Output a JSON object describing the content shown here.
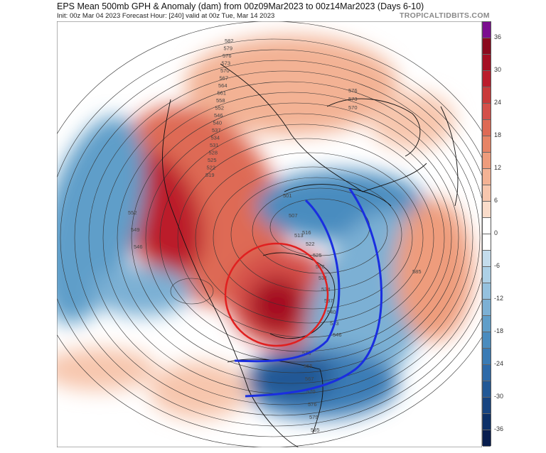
{
  "header": {
    "title": "EPS Mean 500mb GPH & Anomaly (dam) from 00z09Mar2023 to 00z14Mar2023 (Days 6-10)",
    "subtitle": "Init: 00z Mar 04 2023   Forecast Hour: [240]   valid at 00z Tue, Mar 14 2023",
    "brand": "TROPICALTIDBITS.COM"
  },
  "colorbar": {
    "max": 39,
    "min": -39,
    "step": 3,
    "labels": [
      "36",
      "30",
      "24",
      "18",
      "12",
      "6",
      "0",
      "-6",
      "-12",
      "-18",
      "-24",
      "-30",
      "-36"
    ],
    "colors": [
      "#7b0d8f",
      "#8b0a1e",
      "#a50f23",
      "#bb1c2c",
      "#c93a3a",
      "#d4504a",
      "#de6a55",
      "#e78466",
      "#ee9c7c",
      "#f3b294",
      "#f7c6ad",
      "#fadcca",
      "#ffffff",
      "#ffffff",
      "#c4dcec",
      "#add0e6",
      "#95c1de",
      "#7cb0d4",
      "#5f9ec9",
      "#4a8cbf",
      "#3a7bb5",
      "#2d69a8",
      "#225896",
      "#174480",
      "#0c3068",
      "#081d4e"
    ]
  },
  "contour_labels": {
    "west": [
      "582",
      "579",
      "576",
      "573",
      "570",
      "567",
      "564",
      "561",
      "558",
      "552",
      "546",
      "540",
      "537",
      "534",
      "531",
      "528",
      "525",
      "522",
      "519"
    ],
    "pacific": [
      "552",
      "549",
      "546"
    ],
    "canada": [
      "501",
      "507",
      "513",
      "516",
      "522",
      "525",
      "528",
      "531",
      "534",
      "537",
      "540",
      "543",
      "546"
    ],
    "europe": [
      "576",
      "573",
      "570"
    ],
    "atlantic": [
      "585"
    ],
    "southeast": [
      "546",
      "555",
      "567",
      "570",
      "576",
      "579",
      "585"
    ]
  },
  "annotations": {
    "circle_color": "#e02020",
    "arc_color": "#1a2ee0"
  }
}
